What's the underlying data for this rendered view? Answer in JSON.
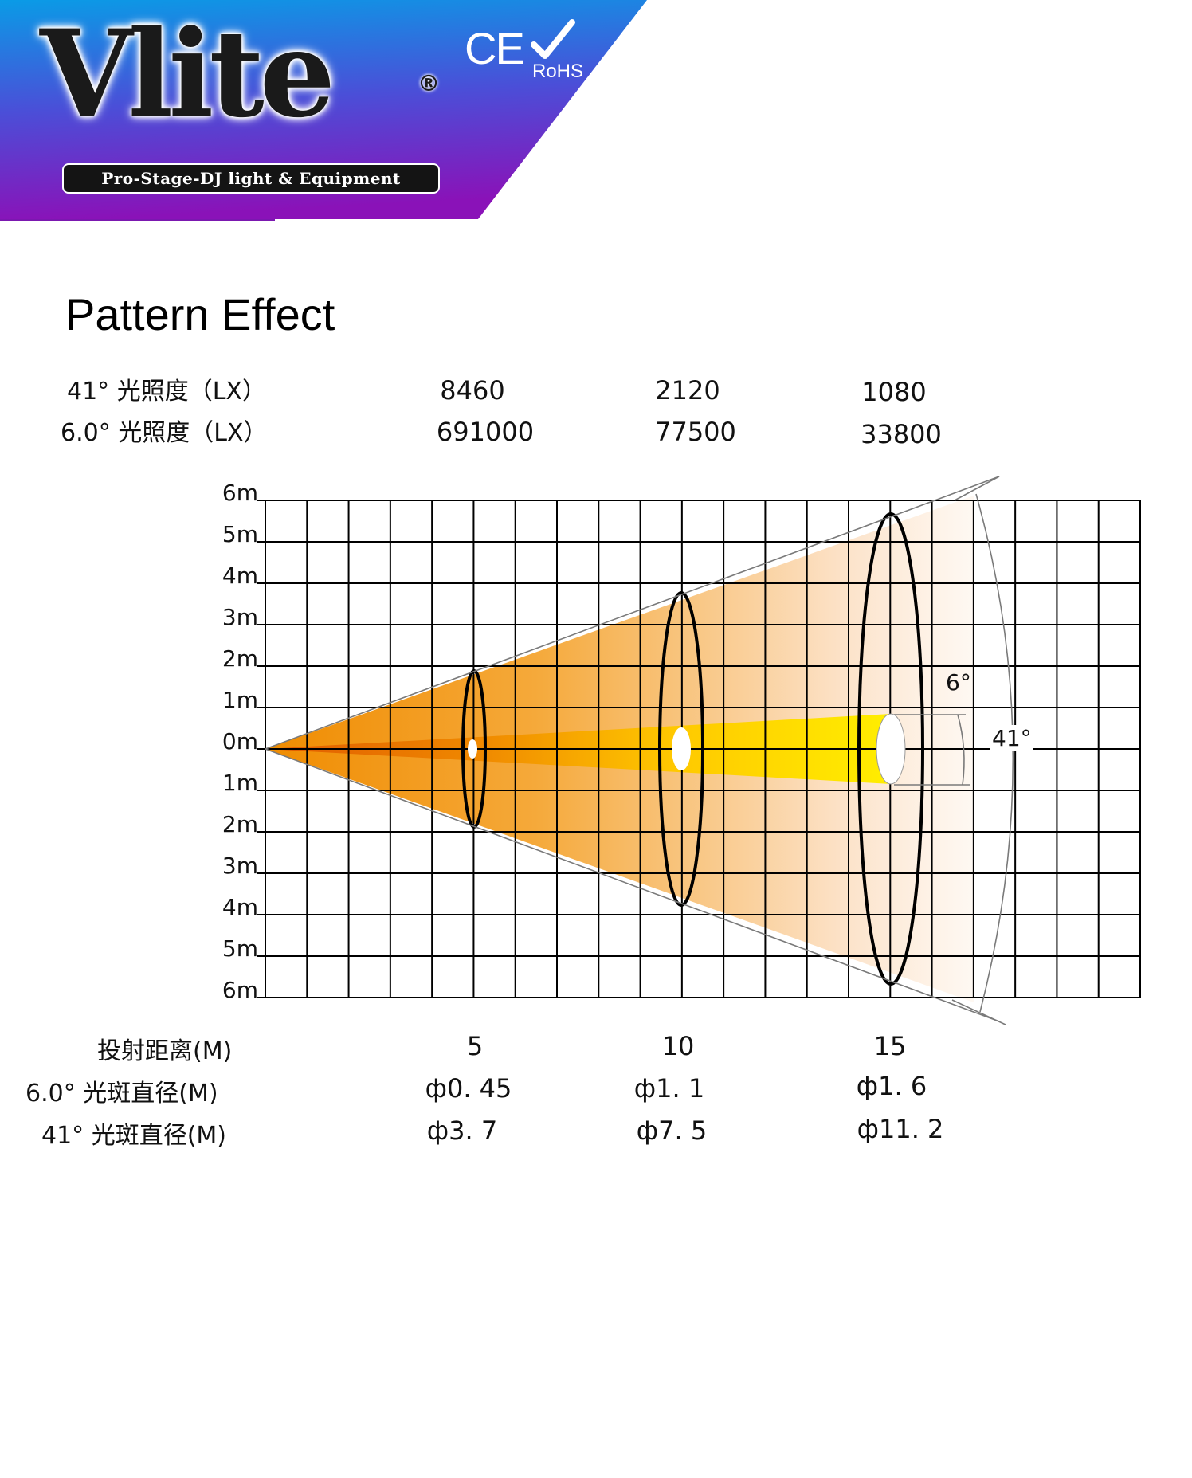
{
  "brand": {
    "name": "Vlite",
    "registered_mark": "®",
    "tagline": "Pro-Stage-DJ light & Equipment",
    "ce_mark": "CE",
    "rohs": "RoHS"
  },
  "colors": {
    "banner_gradient": [
      "#0a9be6",
      "#4a4fd8",
      "#8a12b8"
    ],
    "beam_wide_start": "#f08c00",
    "beam_narrow": "#ffe000",
    "grid": "#000000"
  },
  "title": "Pattern Effect",
  "illuminance": {
    "rows": [
      {
        "label": "41°  光照度（LX）",
        "values": [
          "8460",
          "2120",
          "1080"
        ]
      },
      {
        "label": "6.0°  光照度（LX）",
        "values": [
          "691000",
          "77500",
          "33800"
        ]
      }
    ]
  },
  "diagram": {
    "y_labels": [
      "6m",
      "5m",
      "4m",
      "3m",
      "2m",
      "1m",
      "0m",
      "1m",
      "2m",
      "3m",
      "4m",
      "5m",
      "6m"
    ],
    "narrow_angle_label": "6°",
    "wide_angle_label": "41°"
  },
  "beam_table": {
    "rows": [
      {
        "label": "投射距离(M)",
        "values": [
          "5",
          "10",
          "15"
        ]
      },
      {
        "label": "6.0°  光斑直径(M)",
        "values": [
          "ф0. 45",
          "ф1. 1",
          "ф1. 6"
        ]
      },
      {
        "label": "41°  光斑直径(M)",
        "values": [
          "ф3. 7",
          "ф7. 5",
          "ф11. 2"
        ]
      }
    ]
  },
  "chart_data": {
    "type": "diagram",
    "title": "Pattern Effect",
    "beam_angles_deg": [
      6.0,
      41
    ],
    "distances_m": [
      5,
      10,
      15
    ],
    "illuminance_lx": {
      "41": [
        8460,
        2120,
        1080
      ],
      "6.0": [
        691000,
        77500,
        33800
      ]
    },
    "spot_diameter_m": {
      "6.0": [
        0.45,
        1.1,
        1.6
      ],
      "41": [
        3.7,
        7.5,
        11.2
      ]
    },
    "grid": true
  }
}
